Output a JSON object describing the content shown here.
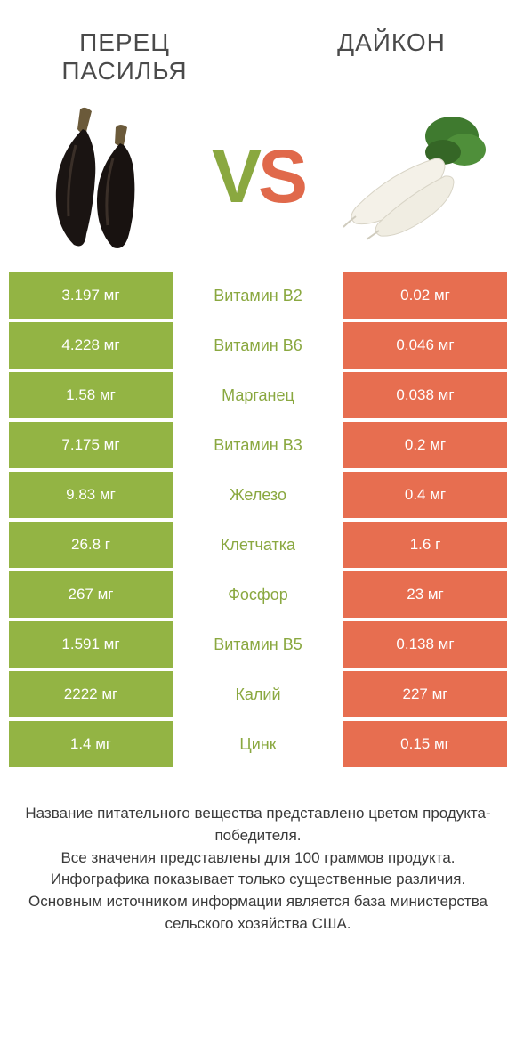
{
  "titles": {
    "left_line1": "ПЕРЕЦ",
    "left_line2": "ПАСИЛЬЯ",
    "right": "ДАЙКОН"
  },
  "vs": {
    "v": "V",
    "s": "S"
  },
  "colors": {
    "left_bg": "#93b444",
    "right_bg": "#e76e50",
    "mid_bg": "#ffffff",
    "left_label_fg": "#8aa840",
    "right_label_fg": "#e0694b"
  },
  "rows": [
    {
      "left": "3.197 мг",
      "label": "Витамин B2",
      "right": "0.02 мг",
      "label_side": "left"
    },
    {
      "left": "4.228 мг",
      "label": "Витамин B6",
      "right": "0.046 мг",
      "label_side": "left"
    },
    {
      "left": "1.58 мг",
      "label": "Марганец",
      "right": "0.038 мг",
      "label_side": "left"
    },
    {
      "left": "7.175 мг",
      "label": "Витамин B3",
      "right": "0.2 мг",
      "label_side": "left"
    },
    {
      "left": "9.83 мг",
      "label": "Железо",
      "right": "0.4 мг",
      "label_side": "left"
    },
    {
      "left": "26.8 г",
      "label": "Клетчатка",
      "right": "1.6 г",
      "label_side": "left"
    },
    {
      "left": "267 мг",
      "label": "Фосфор",
      "right": "23 мг",
      "label_side": "left"
    },
    {
      "left": "1.591 мг",
      "label": "Витамин B5",
      "right": "0.138 мг",
      "label_side": "left"
    },
    {
      "left": "2222 мг",
      "label": "Калий",
      "right": "227 мг",
      "label_side": "left"
    },
    {
      "left": "1.4 мг",
      "label": "Цинк",
      "right": "0.15 мг",
      "label_side": "left"
    }
  ],
  "footer": {
    "l1": "Название питательного вещества представлено цветом продукта-победителя.",
    "l2": "Все значения представлены для 100 граммов продукта.",
    "l3": "Инфографика показывает только существенные различия.",
    "l4": "Основным источником информации является база министерства сельского хозяйства США."
  }
}
